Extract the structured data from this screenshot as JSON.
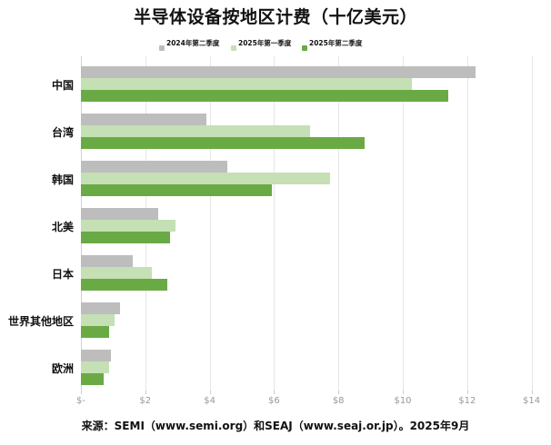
{
  "title": "半导体设备按地区计费（十亿美元）",
  "source": "来源：SEMI（www.semi.org）和SEAJ（www.seaj.or.jp）。2025年9月",
  "legend": [
    {
      "label": "2024年第二季度",
      "color": "#bdbdbd"
    },
    {
      "label": "2025年第一季度",
      "color": "#c5e0b4"
    },
    {
      "label": "2025年第二季度",
      "color": "#6aaa45"
    }
  ],
  "x_ticks": [
    "$-",
    "$2",
    "$4",
    "$6",
    "$8",
    "$10",
    "$12",
    "$14"
  ],
  "chart_data": {
    "type": "bar",
    "orientation": "horizontal",
    "title": "半导体设备按地区计费（十亿美元）",
    "xlabel": "",
    "ylabel": "",
    "xlim": [
      0,
      14
    ],
    "x_ticks": [
      "$-",
      "$2",
      "$4",
      "$6",
      "$8",
      "$10",
      "$12",
      "$14"
    ],
    "grid": true,
    "legend_position": "top",
    "categories": [
      "中国",
      "台湾",
      "韩国",
      "北美",
      "日本",
      "世界其他地区",
      "欧洲"
    ],
    "series": [
      {
        "name": "2024年第二季度",
        "color": "#bdbdbd",
        "values": [
          12.26,
          3.9,
          4.55,
          2.4,
          1.61,
          1.21,
          0.93
        ]
      },
      {
        "name": "2025年第一季度",
        "color": "#c5e0b4",
        "values": [
          10.28,
          7.12,
          7.74,
          2.94,
          2.2,
          1.04,
          0.87
        ]
      },
      {
        "name": "2025年第二季度",
        "color": "#6aaa45",
        "values": [
          11.41,
          8.81,
          5.93,
          2.77,
          2.68,
          0.87,
          0.7
        ]
      }
    ],
    "annotation": "来源：SEMI（www.semi.org）和SEAJ（www.seaj.or.jp）。2025年9月"
  }
}
